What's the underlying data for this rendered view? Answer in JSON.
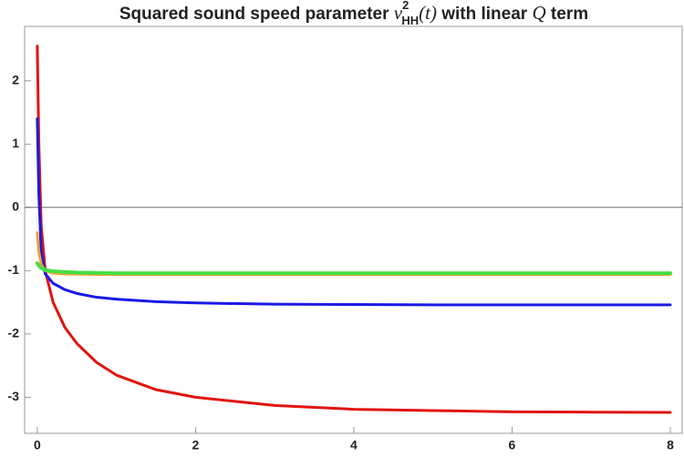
{
  "chart_data": {
    "type": "line",
    "title_parts": [
      "Squared sound speed parameter ",
      "v",
      "2",
      "HH",
      "(t)",
      " with linear ",
      "Q",
      " term"
    ],
    "x": [
      0,
      0.02,
      0.05,
      0.1,
      0.2,
      0.35,
      0.5,
      0.75,
      1,
      1.5,
      2,
      3,
      4,
      5,
      6,
      7,
      8
    ],
    "series": [
      {
        "color": "#e0140f",
        "width": 3,
        "values": [
          2.55,
          1.0,
          -0.3,
          -1.0,
          -1.5,
          -1.9,
          -2.15,
          -2.45,
          -2.65,
          -2.88,
          -3.0,
          -3.13,
          -3.19,
          -3.21,
          -3.23,
          -3.235,
          -3.24
        ]
      },
      {
        "color": "#1a1ae6",
        "width": 3,
        "values": [
          1.4,
          0.2,
          -0.7,
          -1.05,
          -1.2,
          -1.3,
          -1.36,
          -1.42,
          -1.45,
          -1.49,
          -1.51,
          -1.53,
          -1.535,
          -1.54,
          -1.54,
          -1.54,
          -1.54
        ]
      },
      {
        "color": "#f0a030",
        "width": 3,
        "values": [
          -0.4,
          -0.7,
          -0.9,
          -1.0,
          -1.04,
          -1.05,
          -1.055,
          -1.06,
          -1.06,
          -1.06,
          -1.06,
          -1.06,
          -1.06,
          -1.06,
          -1.06,
          -1.06,
          -1.06
        ]
      },
      {
        "color": "#44e044",
        "width": 4,
        "values": [
          -0.88,
          -0.92,
          -0.96,
          -0.99,
          -1.01,
          -1.02,
          -1.03,
          -1.035,
          -1.04,
          -1.04,
          -1.04,
          -1.04,
          -1.04,
          -1.04,
          -1.04,
          -1.04,
          -1.04
        ]
      }
    ],
    "xlim": [
      -0.16,
      8.15
    ],
    "ylim": [
      -3.57,
      2.86
    ],
    "xticks": [
      0,
      2,
      4,
      6,
      8
    ],
    "yticks": [
      -3,
      -2,
      -1,
      0,
      1,
      2
    ]
  }
}
